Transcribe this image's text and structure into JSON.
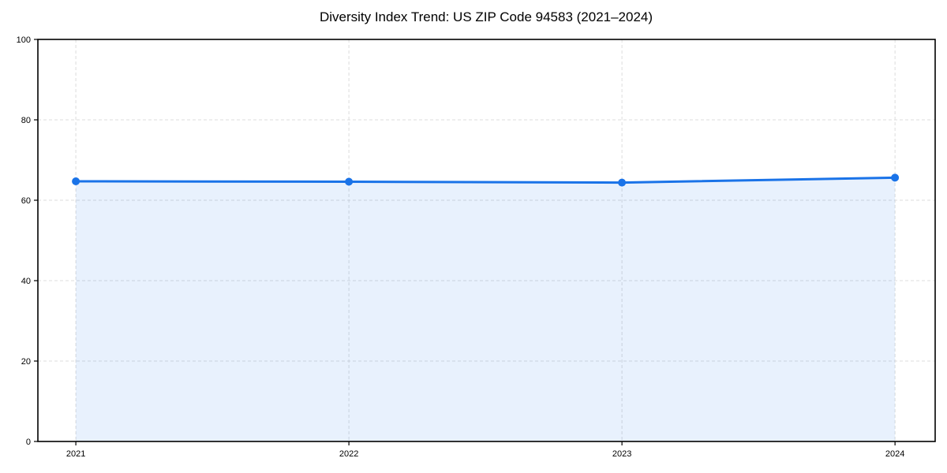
{
  "chart_data": {
    "type": "area",
    "title": "Diversity Index Trend: US ZIP Code 94583 (2021–2024)",
    "x": [
      2021,
      2022,
      2023,
      2024
    ],
    "values": [
      64.7,
      64.6,
      64.4,
      65.6
    ],
    "xticks": [
      2021,
      2022,
      2023,
      2024
    ],
    "yticks": [
      0,
      20,
      40,
      60,
      80,
      100
    ],
    "xlim": [
      2020.861,
      2024.147
    ],
    "ylim": [
      0,
      100
    ],
    "xlabel": "",
    "ylabel": "",
    "grid": true,
    "legend": false,
    "colors": {
      "line": "#1a73e8",
      "marker": "#1a73e8",
      "area_fill": "#1a73e8",
      "grid": "#dcdcdc",
      "spine": "#000000",
      "tick_label": "#000000",
      "title": "#000000",
      "background": "#ffffff"
    },
    "style": {
      "area_fill_opacity": 0.1,
      "line_width": 3,
      "marker_radius": 5,
      "grid_dash": "4 3"
    }
  }
}
